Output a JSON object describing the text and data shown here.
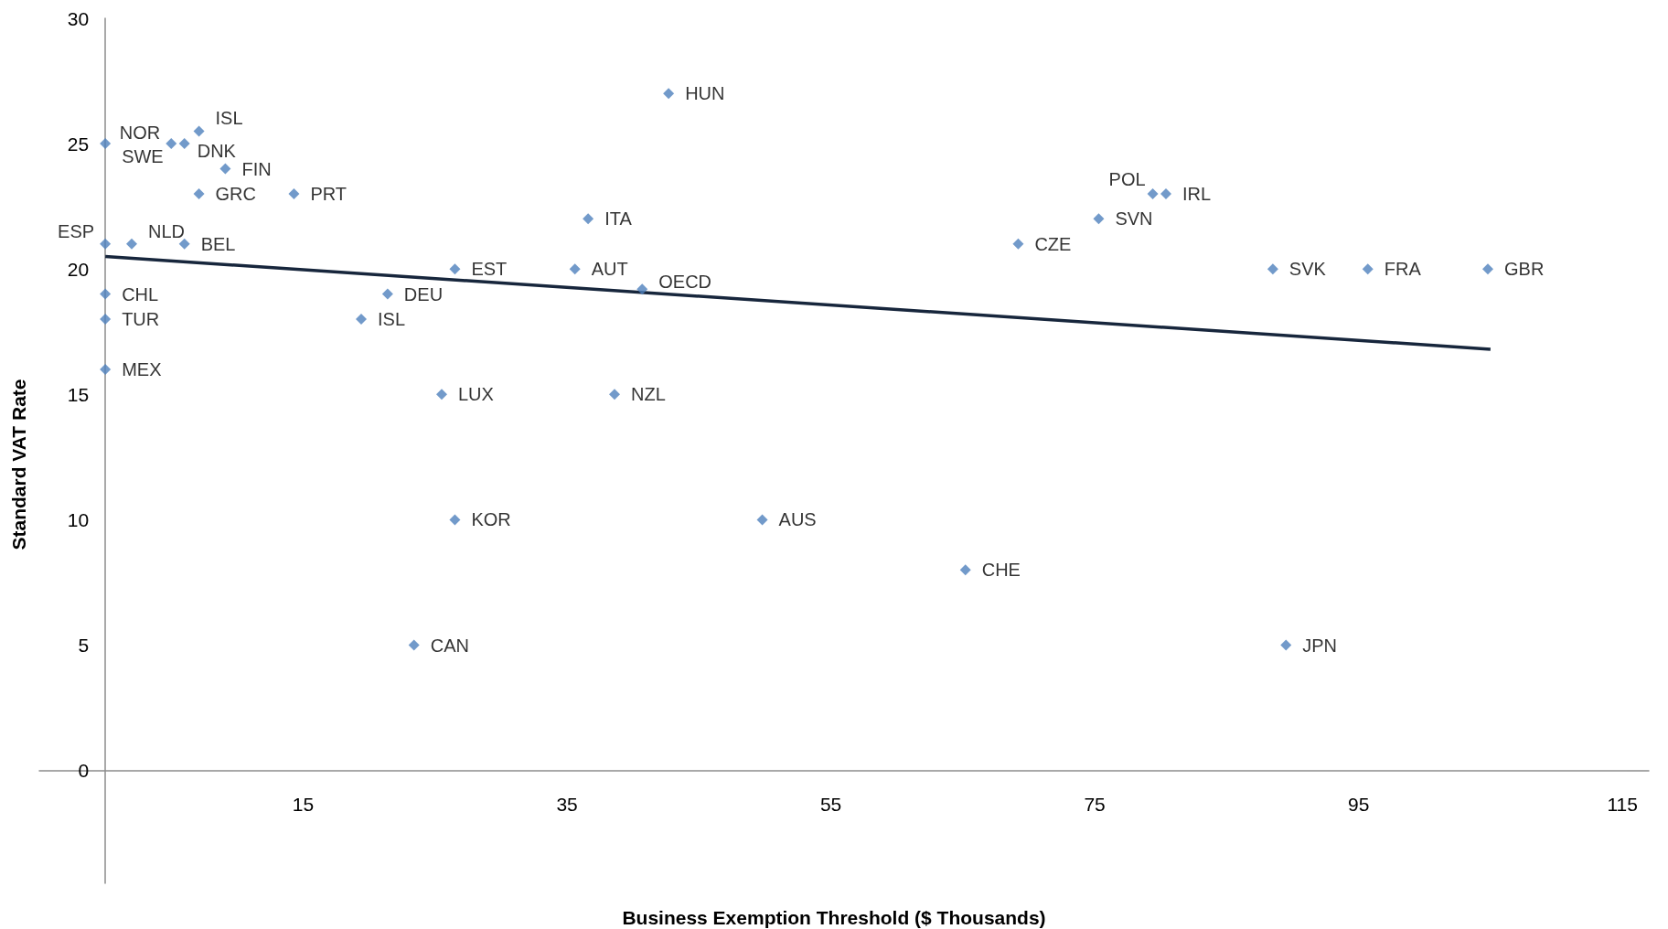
{
  "chart_data": {
    "type": "scatter",
    "xlabel": "Business Exemption Threshold ($ Thousands)",
    "ylabel": "Standard VAT Rate",
    "xlim": [
      -5,
      117
    ],
    "xticks": [
      15,
      35,
      55,
      75,
      95,
      115
    ],
    "ylim": [
      -4.5,
      30
    ],
    "yticks": [
      0,
      5,
      10,
      15,
      20,
      25,
      30
    ],
    "grid": false,
    "series": [
      {
        "marker": "diamond",
        "color": "#4f81bd",
        "x": [
          0,
          5,
          6,
          7.1,
          9.1,
          7.1,
          14.3,
          0,
          2,
          6,
          0,
          0,
          0,
          21.4,
          19.4,
          26.5,
          25.5,
          26.5,
          23.4,
          36.6,
          35.6,
          40.7,
          38.6,
          42.7,
          49.8,
          65.2,
          69.2,
          75.3,
          79.4,
          80.4,
          88.5,
          95.7,
          104.8,
          89.5
        ],
        "values": [
          25,
          25,
          25,
          25.5,
          24,
          23,
          23,
          21,
          21,
          21,
          19,
          18,
          16,
          19,
          18,
          20,
          15,
          10,
          5,
          22,
          20,
          19.2,
          15,
          27,
          10,
          8,
          21,
          22,
          23,
          23,
          20,
          20,
          20,
          5
        ]
      },
      {
        "type": "line",
        "marker": "none",
        "color": "#17263c",
        "x": [
          0,
          105
        ],
        "values": [
          20.5,
          16.8
        ]
      }
    ],
    "annotations": [
      {
        "text": "SWE",
        "x": 0,
        "y": 25
      },
      {
        "text": "NOR",
        "x": 5,
        "y": 25
      },
      {
        "text": "DNK",
        "x": 6,
        "y": 25
      },
      {
        "text": "ISL",
        "x": 7.1,
        "y": 25.5
      },
      {
        "text": "FIN",
        "x": 9.1,
        "y": 24
      },
      {
        "text": "GRC",
        "x": 7.1,
        "y": 23
      },
      {
        "text": "PRT",
        "x": 14.3,
        "y": 23
      },
      {
        "text": "ESP",
        "x": 0,
        "y": 21
      },
      {
        "text": "NLD",
        "x": 2,
        "y": 21
      },
      {
        "text": "BEL",
        "x": 6,
        "y": 21
      },
      {
        "text": "CHL",
        "x": 0,
        "y": 19
      },
      {
        "text": "TUR",
        "x": 0,
        "y": 18
      },
      {
        "text": "MEX",
        "x": 0,
        "y": 16
      },
      {
        "text": "DEU",
        "x": 21.4,
        "y": 19
      },
      {
        "text": "ISL",
        "x": 19.4,
        "y": 18
      },
      {
        "text": "EST",
        "x": 26.5,
        "y": 20
      },
      {
        "text": "LUX",
        "x": 25.5,
        "y": 15
      },
      {
        "text": "KOR",
        "x": 26.5,
        "y": 10
      },
      {
        "text": "CAN",
        "x": 23.4,
        "y": 5
      },
      {
        "text": "ITA",
        "x": 36.6,
        "y": 22
      },
      {
        "text": "AUT",
        "x": 35.6,
        "y": 20
      },
      {
        "text": "OECD",
        "x": 40.7,
        "y": 19.2
      },
      {
        "text": "NZL",
        "x": 38.6,
        "y": 15
      },
      {
        "text": "HUN",
        "x": 42.7,
        "y": 27
      },
      {
        "text": "AUS",
        "x": 49.8,
        "y": 10
      },
      {
        "text": "CHE",
        "x": 65.2,
        "y": 8
      },
      {
        "text": "CZE",
        "x": 69.2,
        "y": 21
      },
      {
        "text": "SVN",
        "x": 75.3,
        "y": 22
      },
      {
        "text": "POL",
        "x": 79.4,
        "y": 23
      },
      {
        "text": "IRL",
        "x": 80.4,
        "y": 23
      },
      {
        "text": "SVK",
        "x": 88.5,
        "y": 20
      },
      {
        "text": "FRA",
        "x": 95.7,
        "y": 20
      },
      {
        "text": "GBR",
        "x": 104.8,
        "y": 20
      },
      {
        "text": "JPN",
        "x": 89.5,
        "y": 5
      }
    ]
  }
}
